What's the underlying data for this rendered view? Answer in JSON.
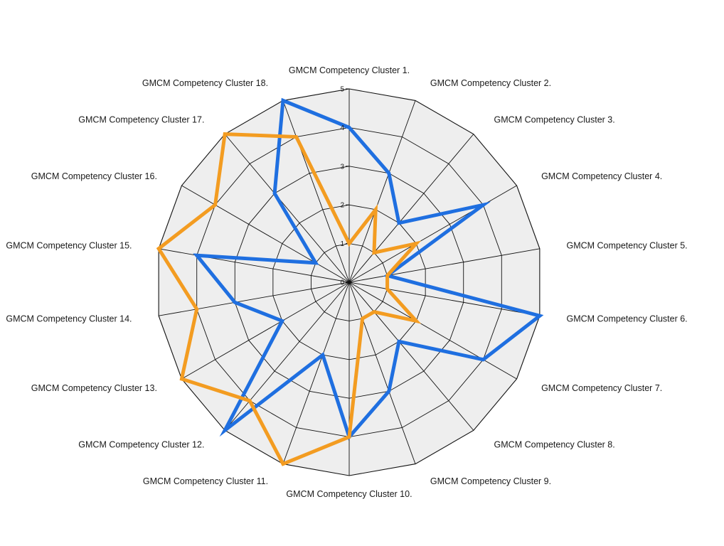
{
  "chart_data": {
    "type": "radar",
    "title": "",
    "categories": [
      "GMCM Competency Cluster 1.",
      "GMCM Competency Cluster 2.",
      "GMCM Competency Cluster 3.",
      "GMCM Competency Cluster 4.",
      "GMCM Competency Cluster 5.",
      "GMCM Competency Cluster 6.",
      "GMCM Competency Cluster 7.",
      "GMCM Competency Cluster 8.",
      "GMCM Competency Cluster 9.",
      "GMCM Competency Cluster 10.",
      "GMCM Competency Cluster 11.",
      "GMCM Competency Cluster 12.",
      "GMCM Competency Cluster 13.",
      "GMCM Competency Cluster 14.",
      "GMCM Competency Cluster 15.",
      "GMCM Competency Cluster 16.",
      "GMCM Competency Cluster 17.",
      "GMCM Competency Cluster 18."
    ],
    "rlim": [
      0,
      5
    ],
    "ticks": [
      "0",
      "1",
      "2",
      "3",
      "4",
      "5"
    ],
    "grid": true,
    "series": [
      {
        "color": "#1f6fe0",
        "values": [
          4,
          3,
          2,
          4,
          1,
          5,
          4,
          2,
          3,
          4,
          2,
          5,
          2,
          3,
          4,
          1,
          3,
          5
        ]
      },
      {
        "color": "#f39c21",
        "values": [
          1,
          2,
          1,
          2,
          1,
          1,
          2,
          1,
          1,
          4,
          5,
          4,
          5,
          4,
          5,
          4,
          5,
          4
        ]
      }
    ],
    "colors": {
      "grid_fill": "#eeeeee",
      "grid_line": "#111111"
    }
  }
}
